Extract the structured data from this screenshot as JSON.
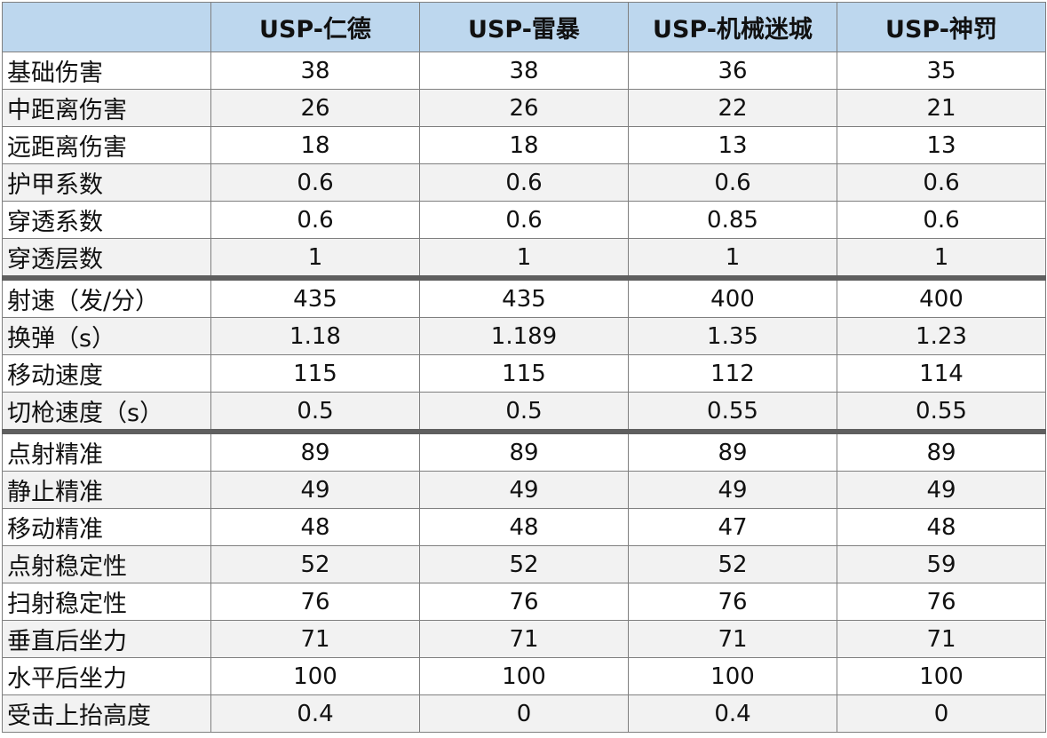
{
  "colors": {
    "header_bg": "#bdd7ee",
    "stripe_bg": "#f2f2f2",
    "group_separator": "#5f5f5f",
    "grid": "#7f7f7f"
  },
  "table": {
    "corner": "",
    "columns": [
      "USP-仁德",
      "USP-雷暴",
      "USP-机械迷城",
      "USP-神罚"
    ],
    "rows": [
      {
        "label": "基础伤害",
        "values": [
          "38",
          "38",
          "36",
          "35"
        ]
      },
      {
        "label": "中距离伤害",
        "values": [
          "26",
          "26",
          "22",
          "21"
        ]
      },
      {
        "label": "远距离伤害",
        "values": [
          "18",
          "18",
          "13",
          "13"
        ]
      },
      {
        "label": "护甲系数",
        "values": [
          "0.6",
          "0.6",
          "0.6",
          "0.6"
        ]
      },
      {
        "label": "穿透系数",
        "values": [
          "0.6",
          "0.6",
          "0.85",
          "0.6"
        ]
      },
      {
        "label": "穿透层数",
        "values": [
          "1",
          "1",
          "1",
          "1"
        ]
      },
      {
        "label": "射速（发/分）",
        "values": [
          "435",
          "435",
          "400",
          "400"
        ]
      },
      {
        "label": "换弹（s）",
        "values": [
          "1.18",
          "1.189",
          "1.35",
          "1.23"
        ]
      },
      {
        "label": "移动速度",
        "values": [
          "115",
          "115",
          "112",
          "114"
        ]
      },
      {
        "label": "切枪速度（s）",
        "values": [
          "0.5",
          "0.5",
          "0.55",
          "0.55"
        ]
      },
      {
        "label": "点射精准",
        "values": [
          "89",
          "89",
          "89",
          "89"
        ]
      },
      {
        "label": "静止精准",
        "values": [
          "49",
          "49",
          "49",
          "49"
        ]
      },
      {
        "label": "移动精准",
        "values": [
          "48",
          "48",
          "47",
          "48"
        ]
      },
      {
        "label": "点射稳定性",
        "values": [
          "52",
          "52",
          "52",
          "59"
        ]
      },
      {
        "label": "扫射稳定性",
        "values": [
          "76",
          "76",
          "76",
          "76"
        ]
      },
      {
        "label": "垂直后坐力",
        "values": [
          "71",
          "71",
          "71",
          "71"
        ]
      },
      {
        "label": "水平后坐力",
        "values": [
          "100",
          "100",
          "100",
          "100"
        ]
      },
      {
        "label": "受击上抬高度",
        "values": [
          "0.4",
          "0",
          "0.4",
          "0"
        ]
      }
    ]
  }
}
